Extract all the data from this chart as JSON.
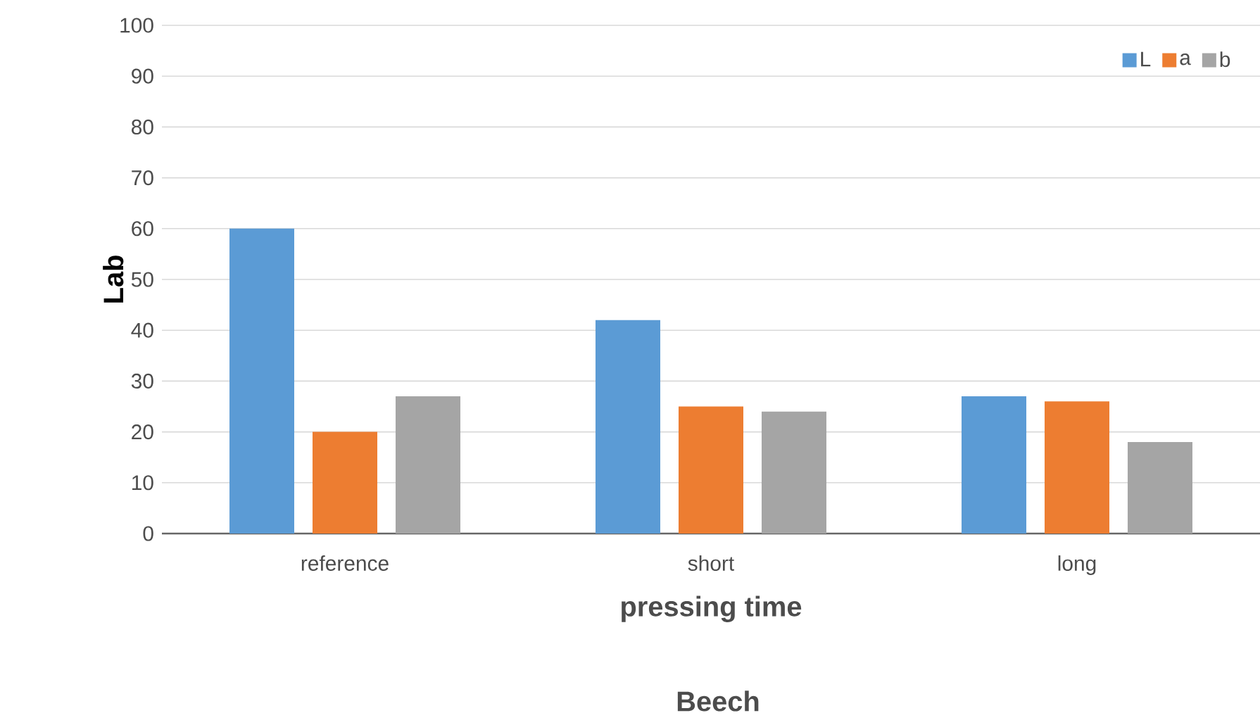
{
  "chart_data": {
    "type": "bar",
    "xlabel": "pressing time",
    "ylabel": "Lab",
    "annotations": [
      "Beech"
    ],
    "categories": [
      "reference",
      "short",
      "long"
    ],
    "series": [
      {
        "name": "L",
        "color": "#5b9bd5",
        "values": [
          60,
          42,
          27
        ]
      },
      {
        "name": "a",
        "color": "#ed7d31",
        "values": [
          20,
          25,
          26
        ]
      },
      {
        "name": "b",
        "color": "#a5a5a5",
        "values": [
          27,
          24,
          18
        ]
      }
    ],
    "ylim": [
      0,
      100
    ],
    "yticks": [
      0,
      10,
      20,
      30,
      40,
      50,
      60,
      70,
      80,
      90,
      100
    ],
    "grid": "y",
    "legend": "top right"
  }
}
